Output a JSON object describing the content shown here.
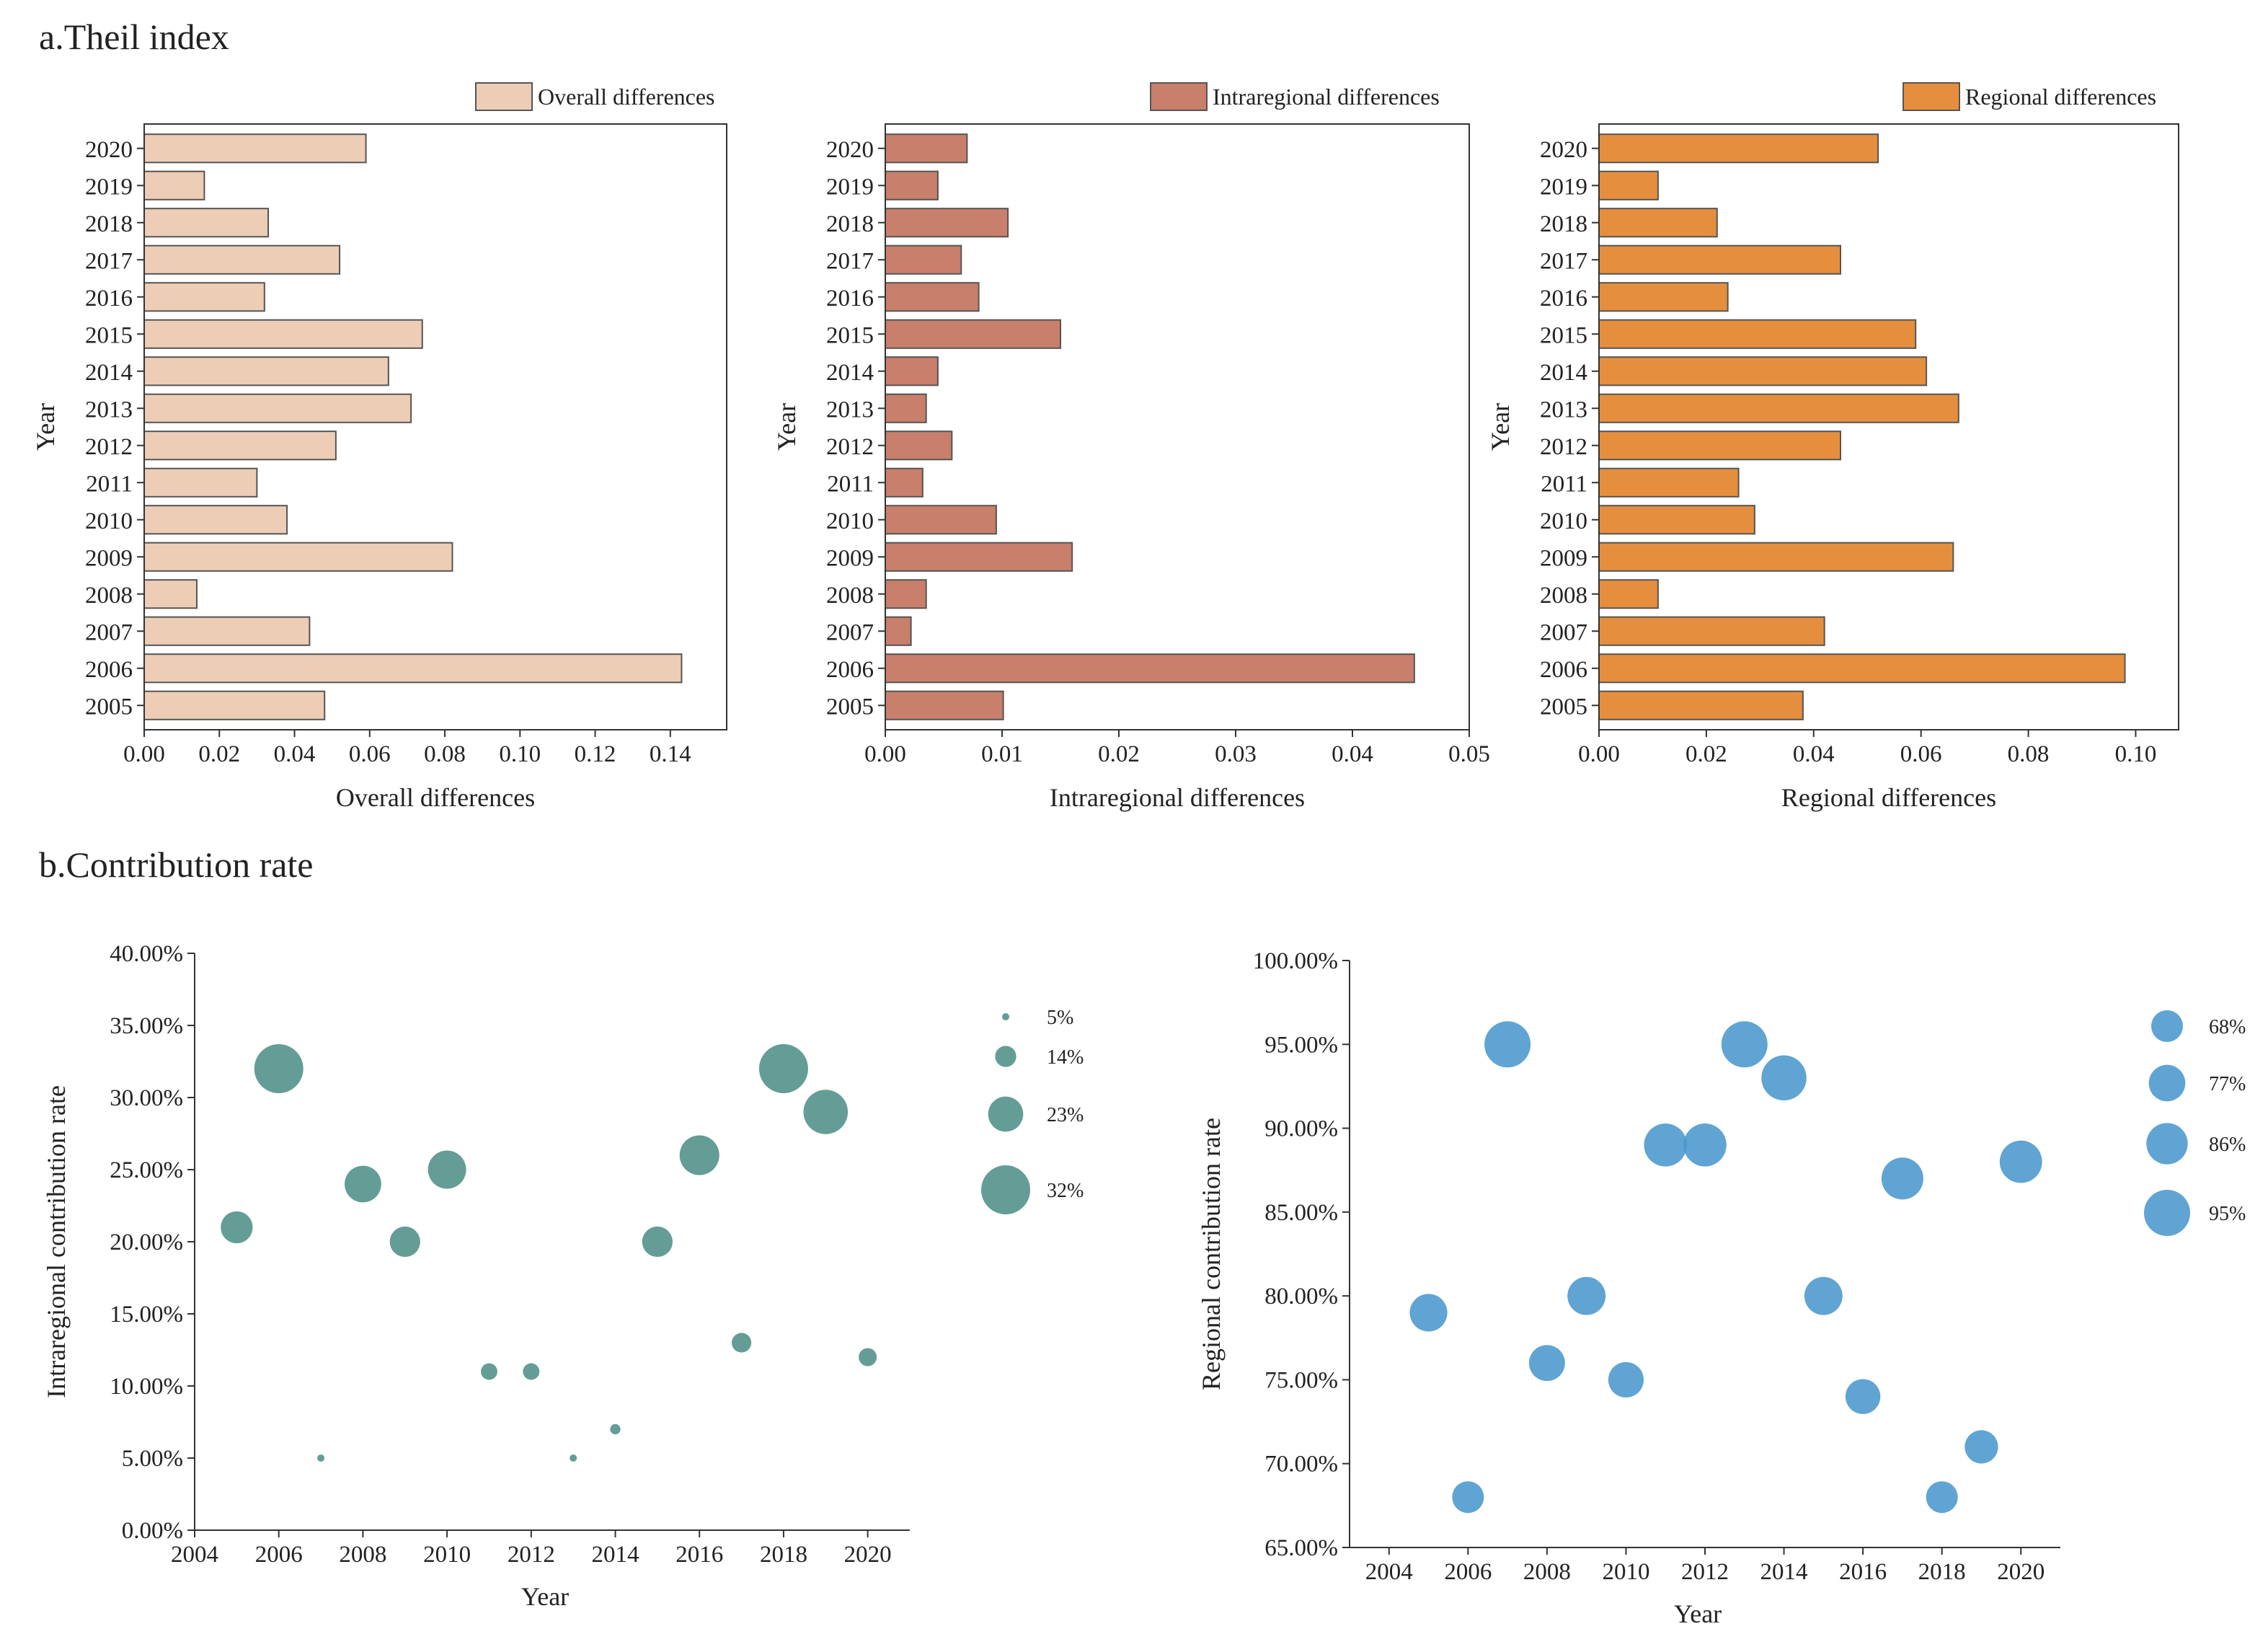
{
  "section_a_title": "a.Theil index",
  "section_b_title": "b.Contribution rate",
  "chart_data": [
    {
      "type": "bar",
      "orientation": "horizontal",
      "legend": "Overall differences",
      "xlabel": "Overall differences",
      "ylabel": "Year",
      "color": "#EDCDB6",
      "xlim": [
        0,
        0.155
      ],
      "xticks": [
        "0.00",
        "0.02",
        "0.04",
        "0.06",
        "0.08",
        "0.10",
        "0.12",
        "0.14"
      ],
      "categories": [
        "2020",
        "2019",
        "2018",
        "2017",
        "2016",
        "2015",
        "2014",
        "2013",
        "2012",
        "2011",
        "2010",
        "2009",
        "2008",
        "2007",
        "2006",
        "2005"
      ],
      "values": [
        0.059,
        0.016,
        0.033,
        0.052,
        0.032,
        0.074,
        0.065,
        0.071,
        0.051,
        0.03,
        0.038,
        0.082,
        0.014,
        0.044,
        0.143,
        0.048
      ]
    },
    {
      "type": "bar",
      "orientation": "horizontal",
      "legend": "Intraregional differences",
      "xlabel": "Intraregional differences",
      "ylabel": "Year",
      "color": "#C87F6B",
      "xlim": [
        0,
        0.05
      ],
      "xticks": [
        "0.00",
        "0.01",
        "0.02",
        "0.03",
        "0.04",
        "0.05"
      ],
      "categories": [
        "2020",
        "2019",
        "2018",
        "2017",
        "2016",
        "2015",
        "2014",
        "2013",
        "2012",
        "2011",
        "2010",
        "2009",
        "2008",
        "2007",
        "2006",
        "2005"
      ],
      "values": [
        0.007,
        0.0045,
        0.0105,
        0.0065,
        0.008,
        0.015,
        0.0045,
        0.0035,
        0.0057,
        0.0032,
        0.0095,
        0.016,
        0.0035,
        0.0022,
        0.0453,
        0.0101
      ]
    },
    {
      "type": "bar",
      "orientation": "horizontal",
      "legend": "Regional differences",
      "xlabel": "Regional differences",
      "ylabel": "Year",
      "color": "#E58F3E",
      "xlim": [
        0,
        0.108
      ],
      "xticks": [
        "0.00",
        "0.02",
        "0.04",
        "0.06",
        "0.08",
        "0.10"
      ],
      "categories": [
        "2020",
        "2019",
        "2018",
        "2017",
        "2016",
        "2015",
        "2014",
        "2013",
        "2012",
        "2011",
        "2010",
        "2009",
        "2008",
        "2007",
        "2006",
        "2005"
      ],
      "values": [
        0.052,
        0.011,
        0.022,
        0.045,
        0.024,
        0.059,
        0.061,
        0.067,
        0.045,
        0.026,
        0.029,
        0.066,
        0.011,
        0.042,
        0.098,
        0.038
      ]
    },
    {
      "type": "scatter",
      "subtype": "bubble",
      "xlabel": "Year",
      "ylabel": "Intraregional contribution rate",
      "color": "#4E8F86",
      "xlim": [
        2004,
        2021
      ],
      "ylim": [
        0,
        40
      ],
      "xticks": [
        "2004",
        "2006",
        "2008",
        "2010",
        "2012",
        "2014",
        "2016",
        "2018",
        "2020"
      ],
      "yticks": [
        "0.00%",
        "5.00%",
        "10.00%",
        "15.00%",
        "20.00%",
        "25.00%",
        "30.00%",
        "35.00%",
        "40.00%"
      ],
      "x": [
        2005,
        2006,
        2007,
        2008,
        2009,
        2010,
        2011,
        2012,
        2013,
        2014,
        2015,
        2016,
        2017,
        2018,
        2019,
        2020
      ],
      "y": [
        21,
        32,
        5,
        24,
        20,
        25,
        11,
        11,
        5,
        7,
        20,
        26,
        13,
        32,
        29,
        12
      ],
      "size_legend": [
        "5%",
        "14%",
        "23%",
        "32%"
      ],
      "size_legend_values": [
        5,
        14,
        23,
        32
      ]
    },
    {
      "type": "scatter",
      "subtype": "bubble",
      "xlabel": "Year",
      "ylabel": "Regional contribution rate",
      "color": "#4A97CD",
      "xlim": [
        2003,
        2021
      ],
      "ylim": [
        65,
        100
      ],
      "xticks": [
        "2004",
        "2006",
        "2008",
        "2010",
        "2012",
        "2014",
        "2016",
        "2018",
        "2020"
      ],
      "yticks": [
        "65.00%",
        "70.00%",
        "75.00%",
        "80.00%",
        "85.00%",
        "90.00%",
        "95.00%",
        "100.00%"
      ],
      "x": [
        2005,
        2006,
        2007,
        2008,
        2009,
        2010,
        2011,
        2012,
        2013,
        2014,
        2015,
        2016,
        2017,
        2018,
        2019,
        2020
      ],
      "y": [
        79,
        68,
        95,
        76,
        80,
        75,
        89,
        89,
        95,
        93,
        80,
        74,
        87,
        68,
        71,
        88
      ],
      "size_legend": [
        "68%",
        "77%",
        "86%",
        "95%"
      ],
      "size_legend_values": [
        68,
        77,
        86,
        95
      ]
    }
  ]
}
